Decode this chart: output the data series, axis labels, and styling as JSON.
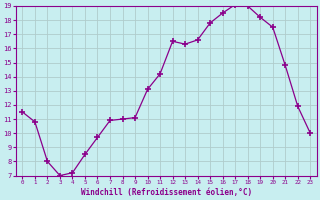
{
  "x": [
    0,
    1,
    2,
    3,
    4,
    5,
    6,
    7,
    8,
    9,
    10,
    11,
    12,
    13,
    14,
    15,
    16,
    17,
    18,
    19,
    20,
    21,
    22,
    23
  ],
  "y": [
    11.5,
    10.8,
    8.0,
    7.0,
    7.2,
    8.5,
    9.7,
    10.9,
    11.0,
    11.1,
    13.1,
    14.2,
    16.5,
    16.3,
    16.6,
    17.8,
    18.5,
    19.1,
    19.0,
    18.2,
    17.5,
    14.8,
    11.9,
    10.0
  ],
  "line_color": "#8b008b",
  "marker": "+",
  "marker_color": "#8b008b",
  "bg_color": "#c8eef0",
  "grid_color": "#b0cccc",
  "xlabel": "Windchill (Refroidissement éolien,°C)",
  "xlabel_color": "#8b008b",
  "tick_color": "#8b008b",
  "ylim": [
    7,
    19
  ],
  "xlim": [
    -0.5,
    23.5
  ],
  "yticks": [
    7,
    8,
    9,
    10,
    11,
    12,
    13,
    14,
    15,
    16,
    17,
    18,
    19
  ],
  "xticks": [
    0,
    1,
    2,
    3,
    4,
    5,
    6,
    7,
    8,
    9,
    10,
    11,
    12,
    13,
    14,
    15,
    16,
    17,
    18,
    19,
    20,
    21,
    22,
    23
  ]
}
